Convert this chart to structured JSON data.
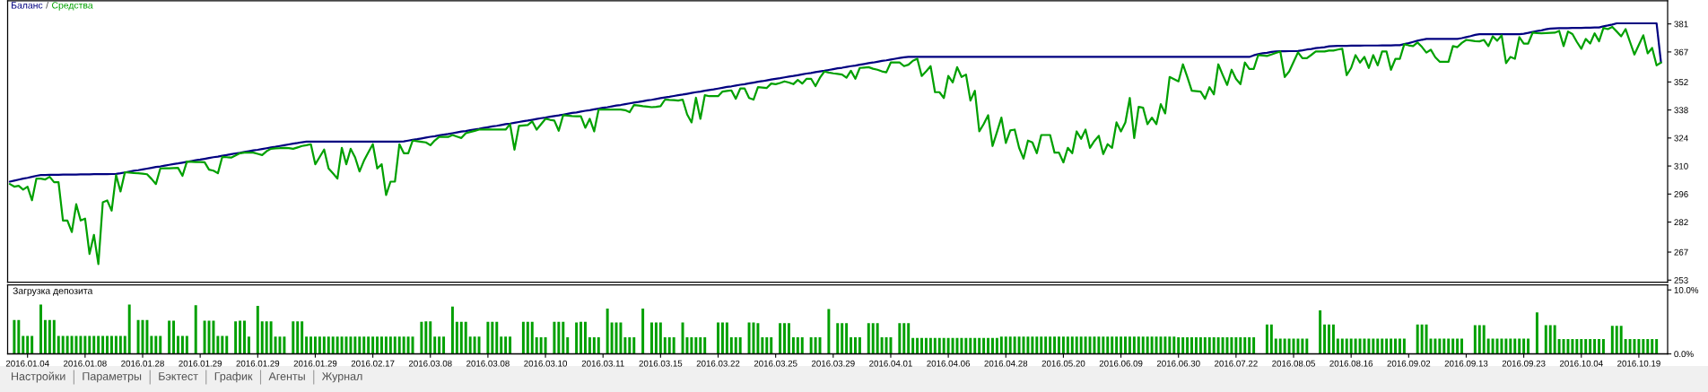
{
  "chart_data": [
    {
      "type": "line",
      "legend": "top left",
      "annotations": [
        "/"
      ],
      "tick_labels": "y",
      "categories": [
        null,
        null,
        null,
        null,
        "2016.01.04",
        null,
        null,
        null,
        null,
        null,
        null,
        null,
        null,
        null,
        null,
        null,
        null,
        "2016.01.08",
        null,
        null,
        null,
        null,
        null,
        null,
        null,
        null,
        null,
        null,
        null,
        null,
        "2016.01.28",
        null,
        null,
        null,
        null,
        null,
        null,
        null,
        null,
        null,
        null,
        null,
        null,
        "2016.01.29",
        null,
        null,
        null,
        null,
        null,
        null,
        null,
        null,
        null,
        null,
        null,
        null,
        "2016.01.29",
        null,
        null,
        null,
        null,
        null,
        null,
        null,
        null,
        null,
        null,
        null,
        null,
        "2016.01.29",
        null,
        null,
        null,
        null,
        null,
        null,
        null,
        null,
        null,
        null,
        null,
        null,
        "2016.02.17",
        null,
        null,
        null,
        null,
        null,
        null,
        null,
        null,
        null,
        null,
        null,
        null,
        "2016.03.08",
        null,
        null,
        null,
        null,
        null,
        null,
        null,
        null,
        null,
        null,
        null,
        null,
        "2016.03.08",
        null,
        null,
        null,
        null,
        null,
        null,
        null,
        null,
        null,
        null,
        null,
        null,
        "2016.03.10",
        null,
        null,
        null,
        null,
        null,
        null,
        null,
        null,
        null,
        null,
        null,
        null,
        "2016.03.11",
        null,
        null,
        null,
        null,
        null,
        null,
        null,
        null,
        null,
        null,
        null,
        null,
        "2016.03.15",
        null,
        null,
        null,
        null,
        null,
        null,
        null,
        null,
        null,
        null,
        null,
        null,
        "2016.03.22",
        null,
        null,
        null,
        null,
        null,
        null,
        null,
        null,
        null,
        null,
        null,
        null,
        "2016.03.25",
        null,
        null,
        null,
        null,
        null,
        null,
        null,
        null,
        null,
        null,
        null,
        null,
        "2016.03.29",
        null,
        null,
        null,
        null,
        null,
        null,
        null,
        null,
        null,
        null,
        null,
        null,
        "2016.04.01",
        null,
        null,
        null,
        null,
        null,
        null,
        null,
        null,
        null,
        null,
        null,
        null,
        "2016.04.06",
        null,
        null,
        null,
        null,
        null,
        null,
        null,
        null,
        null,
        null,
        null,
        null,
        "2016.04.28",
        null,
        null,
        null,
        null,
        null,
        null,
        null,
        null,
        null,
        null,
        null,
        null,
        "2016.05.20",
        null,
        null,
        null,
        null,
        null,
        null,
        null,
        null,
        null,
        null,
        null,
        null,
        "2016.06.09",
        null,
        null,
        null,
        null,
        null,
        null,
        null,
        null,
        null,
        null,
        null,
        null,
        "2016.06.30",
        null,
        null,
        null,
        null,
        null,
        null,
        null,
        null,
        null,
        null,
        null,
        null,
        "2016.07.22",
        null,
        null,
        null,
        null,
        null,
        null,
        null,
        null,
        null,
        null,
        null,
        null,
        "2016.08.05",
        null,
        null,
        null,
        null,
        null,
        null,
        null,
        null,
        null,
        null,
        null,
        null,
        "2016.08.16",
        null,
        null,
        null,
        null,
        null,
        null,
        null,
        null,
        null,
        null,
        null,
        null,
        "2016.09.02",
        null,
        null,
        null,
        null,
        null,
        null,
        null,
        null,
        null,
        null,
        null,
        null,
        "2016.09.13",
        null,
        null,
        null,
        null,
        null,
        null,
        null,
        null,
        null,
        null,
        null,
        null,
        "2016.09.23",
        null,
        null,
        null,
        null,
        null,
        null,
        null,
        null,
        null,
        null,
        null,
        null,
        "2016.10.04",
        null,
        null,
        null,
        null,
        null,
        null,
        null,
        null,
        null,
        null,
        null,
        null,
        "2016.10.19",
        null,
        null,
        null,
        null,
        null,
        null
      ],
      "ylim": [
        252,
        392.5
      ],
      "yticks": [
        253,
        267,
        282,
        296,
        310,
        324,
        338,
        352,
        367,
        381
      ],
      "series": [
        {
          "name": "Баланс",
          "color": "#000080",
          "values": [
            302.2,
            302.7,
            303.2,
            303.7,
            304.1,
            304.6,
            305.1,
            305.5,
            305.5,
            305.6,
            305.6,
            305.6,
            305.7,
            305.7,
            305.7,
            305.7,
            305.8,
            305.8,
            305.8,
            305.9,
            305.9,
            305.9,
            305.9,
            306.0,
            306.1,
            306.4,
            306.8,
            307.2,
            307.6,
            307.9,
            308.3,
            308.7,
            309.1,
            309.5,
            309.8,
            310.2,
            310.6,
            311.0,
            311.3,
            311.7,
            312.1,
            312.5,
            312.9,
            313.2,
            313.6,
            314.0,
            314.4,
            314.7,
            315.1,
            315.5,
            315.9,
            316.3,
            316.6,
            317.0,
            317.4,
            317.8,
            318.1,
            318.5,
            318.9,
            319.3,
            319.6,
            320.0,
            320.4,
            320.8,
            321.2,
            321.5,
            321.9,
            322.2,
            322.2,
            322.2,
            322.2,
            322.2,
            322.2,
            322.2,
            322.2,
            322.2,
            322.2,
            322.2,
            322.2,
            322.2,
            322.2,
            322.2,
            322.2,
            322.2,
            322.2,
            322.2,
            322.2,
            322.2,
            322.2,
            322.3,
            322.7,
            323.1,
            323.4,
            323.8,
            324.2,
            324.6,
            324.9,
            325.3,
            325.7,
            326.0,
            326.4,
            326.8,
            327.2,
            327.5,
            327.9,
            328.3,
            328.6,
            329.0,
            329.4,
            329.8,
            330.1,
            330.5,
            330.9,
            331.2,
            331.6,
            332.0,
            332.4,
            332.7,
            333.1,
            333.5,
            333.9,
            334.2,
            334.6,
            335.0,
            335.3,
            335.7,
            336.1,
            336.5,
            336.8,
            337.2,
            337.6,
            337.9,
            338.3,
            338.7,
            339.1,
            339.4,
            339.8,
            340.2,
            340.5,
            340.9,
            341.3,
            341.7,
            342.0,
            342.4,
            342.8,
            343.1,
            343.5,
            343.9,
            344.3,
            344.6,
            345.0,
            345.4,
            345.7,
            346.1,
            346.5,
            346.9,
            347.2,
            347.6,
            348.0,
            348.3,
            348.7,
            349.1,
            349.5,
            349.8,
            350.2,
            350.6,
            350.9,
            351.3,
            351.7,
            352.1,
            352.4,
            352.8,
            353.2,
            353.6,
            353.9,
            354.3,
            354.7,
            355.0,
            355.4,
            355.8,
            356.2,
            356.5,
            356.9,
            357.3,
            357.6,
            358.0,
            358.4,
            358.8,
            359.1,
            359.5,
            359.9,
            360.2,
            360.6,
            361.0,
            361.4,
            361.7,
            362.1,
            362.5,
            362.8,
            363.2,
            363.6,
            364.0,
            364.3,
            364.5,
            364.5,
            364.5,
            364.5,
            364.5,
            364.5,
            364.5,
            364.5,
            364.5,
            364.5,
            364.5,
            364.5,
            364.5,
            364.5,
            364.5,
            364.5,
            364.5,
            364.5,
            364.5,
            364.5,
            364.5,
            364.5,
            364.5,
            364.5,
            364.5,
            364.5,
            364.5,
            364.5,
            364.5,
            364.5,
            364.5,
            364.5,
            364.5,
            364.5,
            364.5,
            364.5,
            364.5,
            364.5,
            364.5,
            364.5,
            364.5,
            364.5,
            364.5,
            364.5,
            364.5,
            364.5,
            364.5,
            364.5,
            364.5,
            364.5,
            364.5,
            364.5,
            364.5,
            364.5,
            364.5,
            364.5,
            364.5,
            364.5,
            364.5,
            364.5,
            364.5,
            364.5,
            364.5,
            364.5,
            364.5,
            364.5,
            364.5,
            364.5,
            364.5,
            364.5,
            364.5,
            364.5,
            364.5,
            364.5,
            364.5,
            364.5,
            364.5,
            364.5,
            365.3,
            365.9,
            366.3,
            366.6,
            367.0,
            367.2,
            367.3,
            367.3,
            367.4,
            367.4,
            367.5,
            367.8,
            368.2,
            368.5,
            368.9,
            369.1,
            369.4,
            369.8,
            369.9,
            370.0,
            370.0,
            370.0,
            370.1,
            370.1,
            370.1,
            370.2,
            370.2,
            370.2,
            370.2,
            370.3,
            370.3,
            370.3,
            370.4,
            370.4,
            370.9,
            371.4,
            372.0,
            372.6,
            373.1,
            373.5,
            373.5,
            373.5,
            373.5,
            373.5,
            373.5,
            373.5,
            373.5,
            373.9,
            374.4,
            374.9,
            375.5,
            375.9,
            375.9,
            375.9,
            375.9,
            375.9,
            375.9,
            375.9,
            375.9,
            375.9,
            375.9,
            376.1,
            376.5,
            377.0,
            377.4,
            377.8,
            378.3,
            378.7,
            378.8,
            378.9,
            378.9,
            378.9,
            379.0,
            379.0,
            379.0,
            379.1,
            379.1,
            379.2,
            379.2,
            379.8,
            380.2,
            380.7,
            381.3,
            381.3,
            381.3,
            381.3,
            381.3,
            381.3,
            381.3,
            381.3,
            381.3,
            381.3,
            361.7,
            null
          ]
        },
        {
          "name": "Средства",
          "color": "#00a000",
          "values": [
            301.0,
            299.7,
            300.1,
            298.2,
            299.7,
            292.9,
            303.7,
            303.7,
            303.3,
            304.6,
            301.9,
            301.9,
            282.8,
            282.8,
            277.0,
            290.9,
            282.8,
            283.7,
            266.1,
            275.6,
            261.0,
            291.9,
            292.8,
            287.7,
            305.5,
            297.3,
            306.9,
            306.7,
            306.5,
            306.4,
            306.2,
            305.9,
            303.6,
            301.0,
            308.8,
            308.9,
            308.9,
            309.0,
            309.1,
            305.1,
            312.2,
            312.1,
            312.0,
            312.0,
            311.9,
            308.2,
            307.7,
            306.4,
            314.6,
            314.4,
            314.2,
            315.3,
            316.4,
            316.7,
            316.7,
            316.7,
            316.1,
            315.5,
            317.4,
            318.6,
            318.8,
            318.9,
            319.1,
            318.9,
            318.6,
            319.3,
            320.0,
            320.4,
            320.9,
            310.9,
            314.5,
            318.2,
            308.8,
            306.3,
            303.7,
            319.1,
            310.9,
            318.6,
            314.3,
            307.3,
            312.7,
            316.9,
            320.9,
            308.8,
            310.9,
            295.5,
            302.2,
            302.2,
            320.9,
            316.4,
            316.4,
            322.7,
            322.4,
            322.1,
            321.8,
            320.4,
            322.8,
            324.5,
            324.5,
            324.5,
            325.5,
            324.7,
            324.0,
            326.4,
            327.0,
            327.6,
            328.2,
            328.2,
            328.2,
            328.2,
            328.2,
            328.2,
            328.2,
            330.9,
            318.2,
            330.0,
            330.3,
            330.5,
            332.3,
            328.2,
            330.9,
            333.6,
            333.1,
            332.7,
            327.6,
            335.4,
            335.2,
            335.0,
            334.9,
            334.9,
            329.1,
            333.6,
            327.3,
            338.2,
            338.2,
            338.2,
            338.2,
            338.2,
            338.2,
            337.9,
            336.9,
            340.5,
            340.2,
            339.9,
            339.7,
            339.4,
            339.6,
            339.9,
            343.2,
            343.0,
            342.9,
            342.7,
            343.2,
            335.8,
            331.8,
            344.1,
            333.6,
            345.4,
            344.9,
            344.9,
            344.9,
            347.2,
            347.5,
            347.8,
            343.6,
            348.7,
            348.7,
            344.0,
            343.2,
            349.4,
            349.2,
            349.0,
            351.2,
            350.9,
            351.5,
            352.3,
            351.7,
            350.9,
            353.0,
            351.2,
            353.6,
            353.6,
            349.9,
            354.1,
            357.2,
            356.7,
            356.3,
            356.0,
            355.7,
            354.1,
            357.6,
            353.6,
            359.0,
            359.2,
            359.4,
            358.6,
            358.1,
            357.3,
            356.8,
            361.7,
            361.7,
            361.7,
            359.9,
            360.6,
            362.6,
            363.6,
            355.0,
            357.3,
            359.9,
            346.9,
            346.9,
            344.0,
            355.0,
            351.8,
            359.4,
            354.5,
            355.7,
            342.7,
            347.6,
            327.3,
            331.0,
            335.4,
            320.0,
            327.0,
            334.2,
            321.5,
            327.8,
            328.2,
            319.1,
            313.7,
            322.7,
            321.8,
            316.4,
            325.5,
            325.5,
            325.5,
            316.7,
            316.7,
            311.8,
            319.1,
            316.4,
            327.3,
            323.6,
            328.2,
            319.1,
            322.5,
            325.1,
            316.0,
            320.9,
            319.1,
            331.8,
            327.3,
            331.8,
            344.0,
            324.0,
            339.6,
            339.1,
            330.9,
            334.2,
            330.9,
            340.9,
            336.3,
            354.5,
            353.4,
            352.3,
            360.8,
            354.5,
            347.6,
            347.4,
            347.2,
            343.6,
            349.4,
            345.8,
            360.8,
            355.5,
            350.5,
            358.1,
            353.5,
            350.9,
            361.7,
            358.5,
            358.5,
            365.4,
            365.2,
            365.0,
            365.7,
            366.5,
            367.2,
            354.5,
            357.2,
            362.0,
            366.8,
            363.9,
            363.9,
            365.5,
            367.2,
            367.2,
            367.2,
            367.7,
            367.7,
            368.2,
            368.6,
            355.4,
            359.0,
            365.4,
            361.7,
            364.5,
            359.0,
            365.4,
            360.3,
            367.2,
            367.2,
            358.1,
            363.5,
            363.5,
            370.8,
            370.3,
            369.9,
            371.7,
            369.5,
            366.7,
            368.1,
            364.4,
            362.1,
            362.1,
            362.1,
            369.9,
            369.4,
            371.5,
            373.0,
            372.7,
            372.4,
            372.3,
            373.0,
            369.9,
            374.8,
            372.6,
            375.3,
            361.4,
            364.5,
            363.6,
            374.4,
            371.2,
            371.2,
            376.6,
            376.4,
            376.3,
            376.4,
            376.5,
            376.6,
            377.5,
            369.9,
            377.2,
            375.9,
            372.0,
            368.6,
            373.5,
            371.2,
            376.3,
            372.3,
            379.0,
            378.4,
            379.5,
            377.2,
            374.8,
            378.4,
            372.0,
            365.7,
            370.5,
            375.3,
            366.3,
            369.0,
            360.3,
            361.7,
            null
          ]
        }
      ]
    },
    {
      "type": "bar",
      "title": "Загрузка депозита",
      "color": "#00a000",
      "annotations": [
        "Настройки",
        "Параметры",
        "Бэктест",
        "График",
        "Агенты",
        "Журнал"
      ],
      "categories": [
        null,
        null,
        null,
        null,
        "2016.01.04",
        null,
        null,
        null,
        null,
        null,
        null,
        null,
        null,
        null,
        null,
        null,
        null,
        "2016.01.08",
        null,
        null,
        null,
        null,
        null,
        null,
        null,
        null,
        null,
        null,
        null,
        null,
        "2016.01.28",
        null,
        null,
        null,
        null,
        null,
        null,
        null,
        null,
        null,
        null,
        null,
        null,
        "2016.01.29",
        null,
        null,
        null,
        null,
        null,
        null,
        null,
        null,
        null,
        null,
        null,
        null,
        "2016.01.29",
        null,
        null,
        null,
        null,
        null,
        null,
        null,
        null,
        null,
        null,
        null,
        null,
        "2016.01.29",
        null,
        null,
        null,
        null,
        null,
        null,
        null,
        null,
        null,
        null,
        null,
        null,
        "2016.02.17",
        null,
        null,
        null,
        null,
        null,
        null,
        null,
        null,
        null,
        null,
        null,
        null,
        "2016.03.08",
        null,
        null,
        null,
        null,
        null,
        null,
        null,
        null,
        null,
        null,
        null,
        null,
        "2016.03.08",
        null,
        null,
        null,
        null,
        null,
        null,
        null,
        null,
        null,
        null,
        null,
        null,
        "2016.03.10",
        null,
        null,
        null,
        null,
        null,
        null,
        null,
        null,
        null,
        null,
        null,
        null,
        "2016.03.11",
        null,
        null,
        null,
        null,
        null,
        null,
        null,
        null,
        null,
        null,
        null,
        null,
        "2016.03.15",
        null,
        null,
        null,
        null,
        null,
        null,
        null,
        null,
        null,
        null,
        null,
        null,
        "2016.03.22",
        null,
        null,
        null,
        null,
        null,
        null,
        null,
        null,
        null,
        null,
        null,
        null,
        "2016.03.25",
        null,
        null,
        null,
        null,
        null,
        null,
        null,
        null,
        null,
        null,
        null,
        null,
        "2016.03.29",
        null,
        null,
        null,
        null,
        null,
        null,
        null,
        null,
        null,
        null,
        null,
        null,
        "2016.04.01",
        null,
        null,
        null,
        null,
        null,
        null,
        null,
        null,
        null,
        null,
        null,
        null,
        "2016.04.06",
        null,
        null,
        null,
        null,
        null,
        null,
        null,
        null,
        null,
        null,
        null,
        null,
        "2016.04.28",
        null,
        null,
        null,
        null,
        null,
        null,
        null,
        null,
        null,
        null,
        null,
        null,
        "2016.05.20",
        null,
        null,
        null,
        null,
        null,
        null,
        null,
        null,
        null,
        null,
        null,
        null,
        "2016.06.09",
        null,
        null,
        null,
        null,
        null,
        null,
        null,
        null,
        null,
        null,
        null,
        null,
        "2016.06.30",
        null,
        null,
        null,
        null,
        null,
        null,
        null,
        null,
        null,
        null,
        null,
        null,
        "2016.07.22",
        null,
        null,
        null,
        null,
        null,
        null,
        null,
        null,
        null,
        null,
        null,
        null,
        "2016.08.05",
        null,
        null,
        null,
        null,
        null,
        null,
        null,
        null,
        null,
        null,
        null,
        null,
        "2016.08.16",
        null,
        null,
        null,
        null,
        null,
        null,
        null,
        null,
        null,
        null,
        null,
        null,
        "2016.09.02",
        null,
        null,
        null,
        null,
        null,
        null,
        null,
        null,
        null,
        null,
        null,
        null,
        "2016.09.13",
        null,
        null,
        null,
        null,
        null,
        null,
        null,
        null,
        null,
        null,
        null,
        null,
        "2016.09.23",
        null,
        null,
        null,
        null,
        null,
        null,
        null,
        null,
        null,
        null,
        null,
        null,
        "2016.10.04",
        null,
        null,
        null,
        null,
        null,
        null,
        null,
        null,
        null,
        null,
        null,
        null,
        "2016.10.19",
        null,
        null,
        null,
        null,
        null,
        null
      ],
      "ylim": [
        0,
        10.8
      ],
      "yticks": [
        {
          "value": 0,
          "label": "0.0%"
        },
        {
          "value": 10,
          "label": "10.0%"
        }
      ],
      "values": [
        null,
        5.3,
        5.3,
        2.8,
        2.8,
        2.8,
        null,
        7.7,
        5.3,
        5.3,
        5.3,
        2.8,
        2.8,
        2.8,
        2.8,
        2.8,
        2.8,
        2.8,
        2.8,
        2.8,
        2.8,
        2.8,
        2.8,
        2.8,
        2.8,
        2.8,
        2.8,
        7.7,
        null,
        5.3,
        5.3,
        5.3,
        2.8,
        2.8,
        2.8,
        null,
        5.2,
        5.2,
        2.8,
        2.8,
        2.8,
        null,
        7.6,
        null,
        5.2,
        5.2,
        5.2,
        2.8,
        2.8,
        2.8,
        null,
        5.1,
        5.2,
        5.2,
        2.7,
        null,
        7.5,
        5.1,
        5.1,
        5.1,
        2.7,
        2.7,
        2.7,
        null,
        5.1,
        5.1,
        5.1,
        2.7,
        2.7,
        2.7,
        2.7,
        2.7,
        2.7,
        2.7,
        2.7,
        2.7,
        2.7,
        2.7,
        2.7,
        2.7,
        2.7,
        2.7,
        2.7,
        2.7,
        2.7,
        2.7,
        2.7,
        2.7,
        2.7,
        2.7,
        2.7,
        2.7,
        null,
        5.0,
        5.1,
        5.1,
        2.7,
        2.7,
        2.7,
        null,
        7.4,
        5.0,
        5.0,
        5.0,
        2.7,
        2.7,
        2.7,
        null,
        5.0,
        5.0,
        5.0,
        2.7,
        2.7,
        2.7,
        null,
        null,
        5.0,
        5.0,
        5.0,
        2.6,
        2.6,
        2.6,
        null,
        5.0,
        5.0,
        5.0,
        2.6,
        null,
        4.9,
        5.0,
        5.0,
        2.6,
        2.6,
        2.6,
        null,
        7.1,
        4.9,
        4.9,
        4.9,
        2.6,
        2.6,
        2.6,
        null,
        7.1,
        null,
        4.9,
        4.9,
        4.9,
        2.6,
        2.6,
        2.6,
        null,
        4.9,
        2.6,
        2.6,
        2.6,
        2.6,
        2.6,
        null,
        null,
        4.9,
        4.9,
        4.9,
        2.6,
        2.6,
        2.6,
        null,
        4.9,
        4.9,
        4.8,
        2.6,
        2.6,
        2.6,
        null,
        4.8,
        4.8,
        4.8,
        2.6,
        2.6,
        2.6,
        null,
        2.6,
        2.6,
        2.6,
        null,
        7.0,
        null,
        4.8,
        4.8,
        4.8,
        2.6,
        2.6,
        2.6,
        null,
        4.8,
        4.8,
        4.8,
        2.6,
        2.6,
        2.6,
        null,
        4.8,
        4.8,
        4.8,
        2.5,
        2.5,
        2.5,
        2.5,
        2.5,
        2.5,
        2.5,
        2.5,
        2.5,
        2.5,
        2.5,
        2.5,
        2.5,
        2.5,
        2.5,
        2.5,
        2.5,
        2.5,
        2.5,
        2.5,
        2.7,
        2.7,
        2.7,
        2.7,
        2.7,
        2.7,
        2.7,
        2.7,
        2.7,
        2.7,
        2.7,
        2.7,
        2.7,
        2.7,
        2.7,
        2.7,
        2.7,
        2.7,
        2.7,
        2.7,
        2.7,
        2.7,
        2.7,
        2.7,
        2.7,
        2.7,
        2.7,
        2.7,
        2.7,
        2.7,
        2.7,
        2.7,
        2.7,
        2.7,
        2.7,
        2.7,
        2.7,
        2.7,
        2.7,
        2.7,
        2.6,
        2.6,
        2.6,
        2.6,
        2.6,
        2.6,
        2.6,
        2.6,
        2.6,
        2.6,
        2.6,
        2.6,
        2.6,
        2.6,
        2.6,
        2.6,
        2.6,
        2.6,
        null,
        null,
        4.6,
        4.6,
        2.4,
        2.4,
        2.4,
        2.4,
        2.4,
        2.4,
        2.4,
        2.4,
        null,
        null,
        6.8,
        4.6,
        4.6,
        4.6,
        2.4,
        2.4,
        2.4,
        2.4,
        2.4,
        2.4,
        2.4,
        2.4,
        2.4,
        2.4,
        2.4,
        2.4,
        2.4,
        2.4,
        2.4,
        2.4,
        null,
        null,
        4.6,
        4.6,
        4.6,
        2.4,
        2.4,
        2.4,
        2.4,
        2.4,
        2.4,
        2.4,
        2.4,
        null,
        null,
        4.5,
        4.5,
        4.5,
        2.4,
        2.4,
        2.4,
        2.4,
        2.4,
        2.4,
        2.4,
        2.4,
        2.4,
        2.4,
        null,
        6.5,
        null,
        4.5,
        4.5,
        4.5,
        2.3,
        2.3,
        2.3,
        2.3,
        2.3,
        2.3,
        2.3,
        2.3,
        2.3,
        2.3,
        2.3,
        null,
        4.4,
        4.4,
        4.4,
        2.3,
        2.3,
        2.3,
        2.3,
        2.3,
        2.3,
        2.3,
        2.3,
        null,
        null
      ]
    }
  ]
}
